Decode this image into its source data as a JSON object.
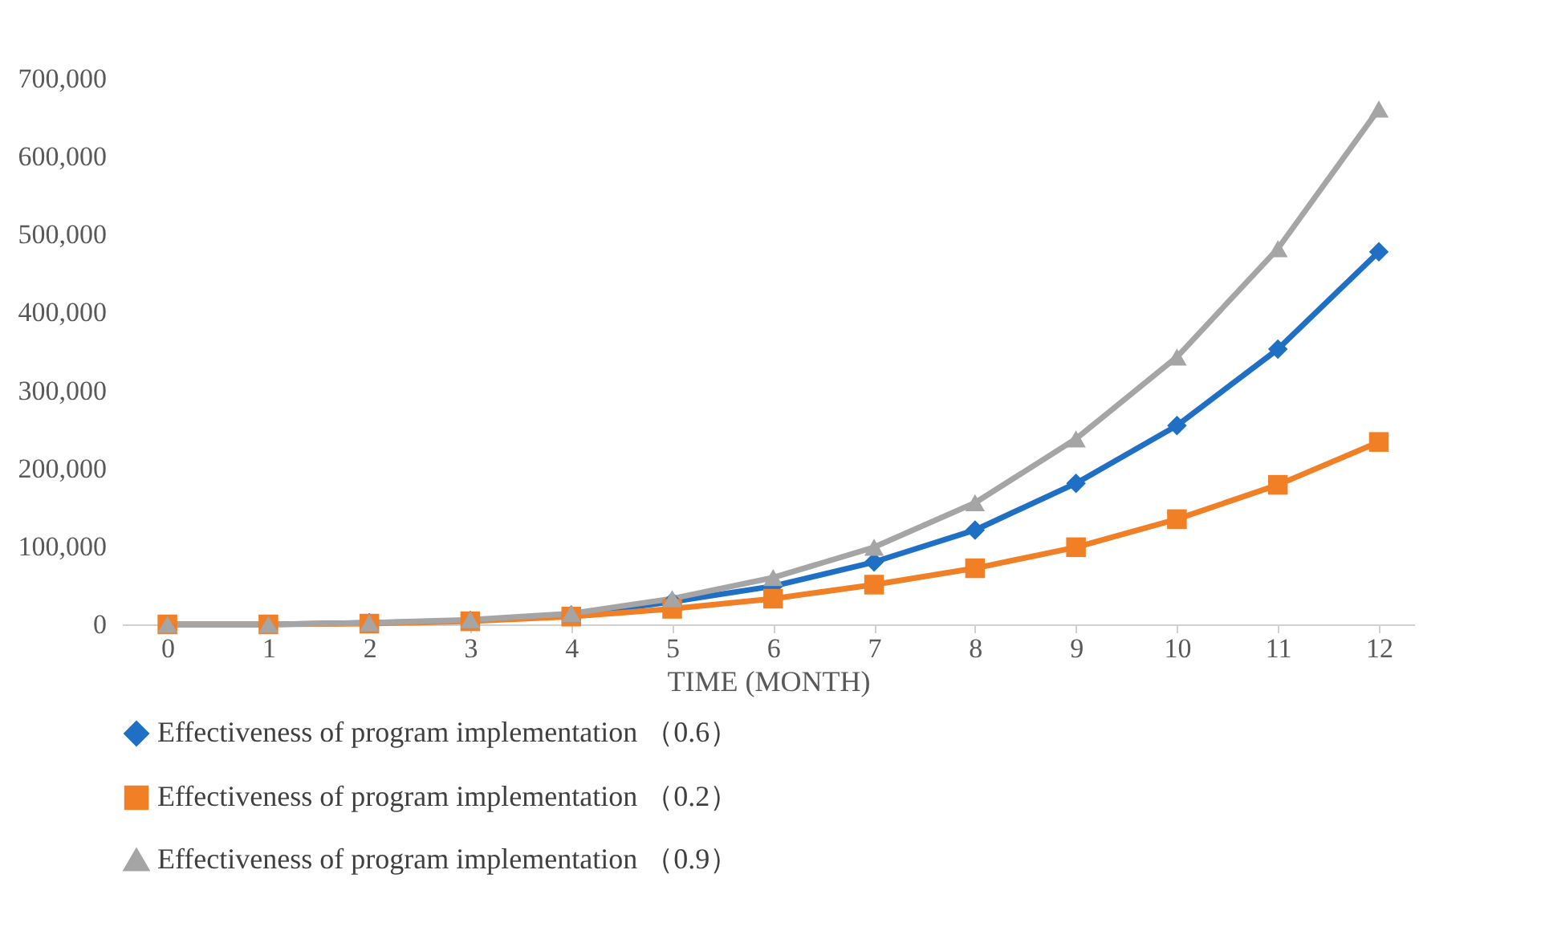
{
  "chart_data": {
    "type": "line",
    "xlabel": "TIME (MONTH)",
    "x": [
      0,
      1,
      2,
      3,
      4,
      5,
      6,
      7,
      8,
      9,
      10,
      11,
      12
    ],
    "xlim": [
      -0.45,
      12.35
    ],
    "xticks": [
      0,
      1,
      2,
      3,
      4,
      5,
      6,
      7,
      8,
      9,
      10,
      11,
      12
    ],
    "ylim": [
      0,
      700000
    ],
    "yticks": [
      {
        "value": 0,
        "label": "0"
      },
      {
        "value": 100000,
        "label": "100,000"
      },
      {
        "value": 200000,
        "label": "200,000"
      },
      {
        "value": 300000,
        "label": "300,000"
      },
      {
        "value": 400000,
        "label": "400,000"
      },
      {
        "value": 500000,
        "label": "500,000"
      },
      {
        "value": 600000,
        "label": "600,000"
      },
      {
        "value": 700000,
        "label": "700,000"
      }
    ],
    "grid": false,
    "legend": "bottom",
    "line_style": "solid",
    "series": [
      {
        "name": "Effectiveness of program implementation （0.6）",
        "color": "#1f6fc5",
        "marker": "diamond",
        "values": [
          0,
          0,
          2000,
          5000,
          12000,
          29000,
          49000,
          80000,
          121000,
          181000,
          255000,
          353000,
          478000
        ]
      },
      {
        "name": "Effectiveness of program implementation （0.2）",
        "color": "#f07f26",
        "marker": "square",
        "values": [
          0,
          0,
          1000,
          4000,
          10000,
          20000,
          33000,
          51000,
          72000,
          99000,
          135000,
          179000,
          234000
        ]
      },
      {
        "name": "Effectiveness of program implementation （0.9）",
        "color": "#a5a5a5",
        "marker": "triangle",
        "values": [
          0,
          0,
          2000,
          6000,
          14000,
          33000,
          60000,
          99000,
          156000,
          238000,
          343000,
          482000,
          661000
        ]
      }
    ]
  }
}
